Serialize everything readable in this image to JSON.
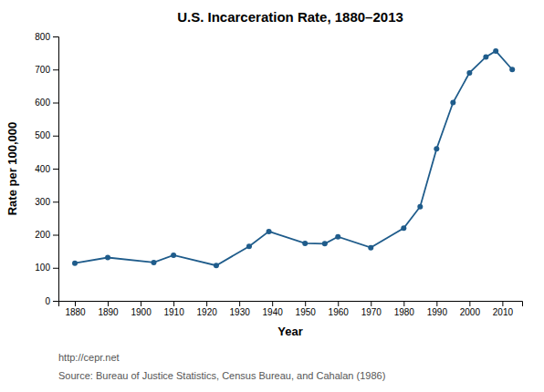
{
  "chart_data": {
    "type": "line",
    "title": "U.S. Incarceration Rate, 1880–2013",
    "xlabel": "Year",
    "ylabel": "Rate per 100,000",
    "x": [
      1880,
      1890,
      1904,
      1910,
      1923,
      1933,
      1939,
      1950,
      1956,
      1960,
      1970,
      1980,
      1985,
      1990,
      1995,
      2000,
      2005,
      2008,
      2013
    ],
    "values": [
      114,
      131,
      116,
      138,
      107,
      165,
      210,
      174,
      173,
      194,
      161,
      220,
      285,
      460,
      600,
      690,
      738,
      756,
      700
    ],
    "color": "#1f5c8b",
    "marker": "circle",
    "xlim": [
      1875,
      2016
    ],
    "ylim": [
      0,
      800
    ],
    "xticks": [
      1880,
      1890,
      1900,
      1910,
      1920,
      1930,
      1940,
      1950,
      1960,
      1970,
      1980,
      1990,
      2000,
      2010
    ],
    "yticks": [
      0,
      100,
      200,
      300,
      400,
      500,
      600,
      700,
      800
    ],
    "grid": false,
    "annotations": [
      "http://cepr.net",
      "Source: Bureau of Justice Statistics, Census Bureau, and Cahalan (1986)"
    ]
  }
}
